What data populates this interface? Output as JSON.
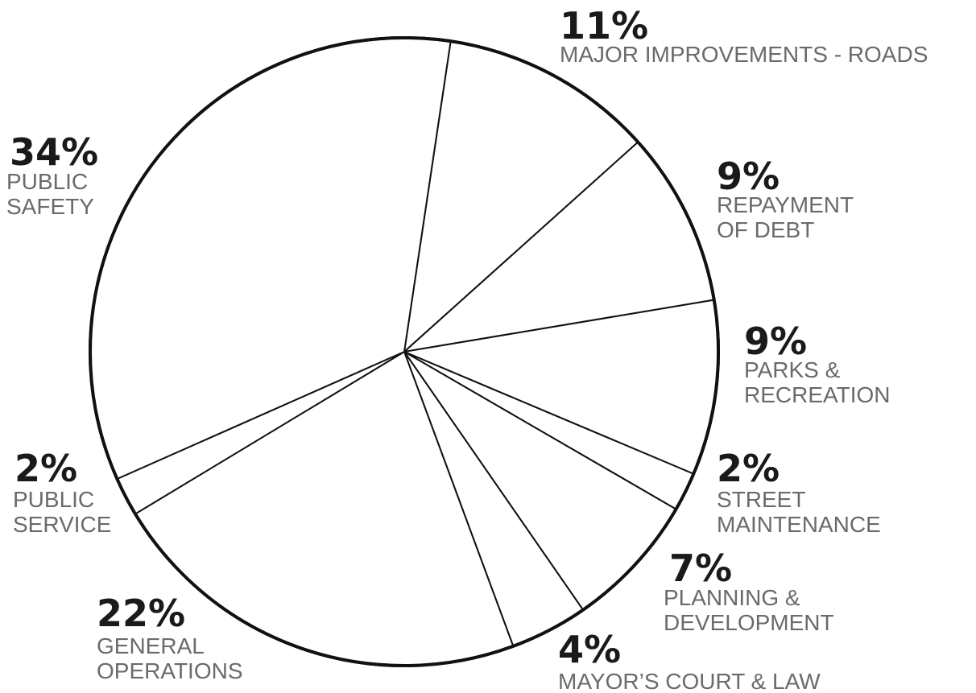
{
  "chart_data": {
    "type": "pie",
    "title": "",
    "slices": [
      {
        "percent": 11,
        "label_lines": [
          "MAJOR IMPROVEMENTS - ROADS"
        ]
      },
      {
        "percent": 9,
        "label_lines": [
          "REPAYMENT",
          "OF DEBT"
        ]
      },
      {
        "percent": 9,
        "label_lines": [
          "PARKS &",
          "RECREATION"
        ]
      },
      {
        "percent": 2,
        "label_lines": [
          "STREET",
          "MAINTENANCE"
        ]
      },
      {
        "percent": 7,
        "label_lines": [
          "PLANNING &",
          "DEVELOPMENT"
        ]
      },
      {
        "percent": 4,
        "label_lines": [
          "MAYOR’S COURT & LAW"
        ]
      },
      {
        "percent": 22,
        "label_lines": [
          "GENERAL",
          "OPERATIONS"
        ]
      },
      {
        "percent": 2,
        "label_lines": [
          "PUBLIC",
          "SERVICE"
        ]
      },
      {
        "percent": 34,
        "label_lines": [
          "PUBLIC",
          "SAFETY"
        ]
      }
    ],
    "legend": "none",
    "colors": {
      "fill": "#ffffff",
      "stroke": "#111111",
      "percent_text": "#1a1a1a",
      "label_text": "#6a6a6a"
    }
  }
}
